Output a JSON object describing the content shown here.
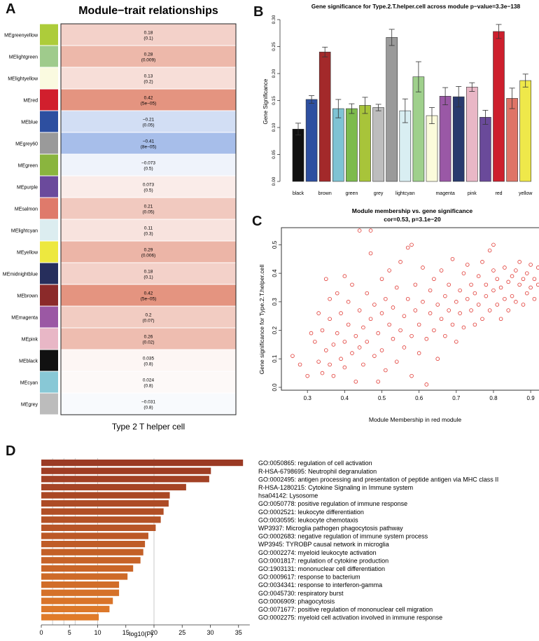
{
  "panel_labels": {
    "a": "A",
    "b": "B",
    "c": "C",
    "d": "D"
  },
  "chart_data": [
    {
      "id": "A",
      "type": "heatmap",
      "title": "Module−trait relationships",
      "xlabel": "Type 2 T helper cell",
      "color_scale": {
        "negative": "#3b6fd0",
        "zero": "#ffffff",
        "positive": "#d9694d",
        "range": [
          -1,
          1
        ]
      },
      "rows": [
        {
          "module": "MEgreenyellow",
          "color": "#adcc3a",
          "cor": 0.18,
          "label": "0.18",
          "pvalue": "(0.1)"
        },
        {
          "module": "MElightgreen",
          "color": "#9fcb8c",
          "cor": 0.28,
          "label": "0.28",
          "pvalue": "(0.009)"
        },
        {
          "module": "MElightyellow",
          "color": "#fafae0",
          "cor": 0.13,
          "label": "0.13",
          "pvalue": "(0.2)"
        },
        {
          "module": "MEred",
          "color": "#d11f2d",
          "cor": 0.42,
          "label": "0.42",
          "pvalue": "(5e−05)"
        },
        {
          "module": "MEblue",
          "color": "#2d4fa0",
          "cor": -0.21,
          "label": "−0.21",
          "pvalue": "(0.05)"
        },
        {
          "module": "MEgrey60",
          "color": "#9a9a9a",
          "cor": -0.41,
          "label": "−0.41",
          "pvalue": "(8e−05)"
        },
        {
          "module": "MEgreen",
          "color": "#8ab53e",
          "cor": -0.073,
          "label": "−0.073",
          "pvalue": "(0.5)"
        },
        {
          "module": "MEpurple",
          "color": "#6b4a9c",
          "cor": 0.073,
          "label": "0.073",
          "pvalue": "(0.5)"
        },
        {
          "module": "MEsalmon",
          "color": "#df7a6b",
          "cor": 0.21,
          "label": "0.21",
          "pvalue": "(0.05)"
        },
        {
          "module": "MElightcyan",
          "color": "#dcedf0",
          "cor": 0.11,
          "label": "0.11",
          "pvalue": "(0.3)"
        },
        {
          "module": "MEyellow",
          "color": "#ede83f",
          "cor": 0.29,
          "label": "0.29",
          "pvalue": "(0.006)"
        },
        {
          "module": "MEmidnightblue",
          "color": "#262e5c",
          "cor": 0.18,
          "label": "0.18",
          "pvalue": "(0.1)"
        },
        {
          "module": "MEbrown",
          "color": "#8b2a2a",
          "cor": 0.42,
          "label": "0.42",
          "pvalue": "(5e−05)"
        },
        {
          "module": "MEmagenta",
          "color": "#9b58a4",
          "cor": 0.2,
          "label": "0.2",
          "pvalue": "(0.07)"
        },
        {
          "module": "MEpink",
          "color": "#e8b7c6",
          "cor": 0.26,
          "label": "0.26",
          "pvalue": "(0.02)"
        },
        {
          "module": "MEblack",
          "color": "#111111",
          "cor": 0.035,
          "label": "0.035",
          "pvalue": "(0.8)"
        },
        {
          "module": "MEcyan",
          "color": "#88c8d6",
          "cor": 0.024,
          "label": "0.024",
          "pvalue": "(0.8)"
        },
        {
          "module": "MEgrey",
          "color": "#bcbcbc",
          "cor": -0.031,
          "label": "−0.031",
          "pvalue": "(0.8)"
        }
      ]
    },
    {
      "id": "B",
      "type": "bar",
      "title": "Gene significance for Type.2.T.helper.cell across module p−value=3.3e−138",
      "xlabel": "",
      "ylabel": "Gene Significance",
      "ylim": [
        0,
        0.3
      ],
      "yticks": [
        "0.00",
        "0.05",
        "0.10",
        "0.15",
        "0.20",
        "0.25",
        "0.30"
      ],
      "categories": [
        "black",
        "blue",
        "brown",
        "cyan",
        "green",
        "greenyellow",
        "grey",
        "grey60",
        "lightcyan",
        "lightgreen",
        "lightyellow",
        "magenta",
        "midnightblue",
        "pink",
        "purple",
        "red",
        "salmon",
        "yellow"
      ],
      "shown_tick_labels": [
        "black",
        "brown",
        "green",
        "grey",
        "lightcyan",
        "magenta",
        "pink",
        "red",
        "yellow"
      ],
      "colors": [
        "#111111",
        "#2d4fa0",
        "#a3292a",
        "#7ec3d3",
        "#7dbb4c",
        "#a8c43a",
        "#bdbdbd",
        "#9a9a9a",
        "#d9eef2",
        "#9fd08c",
        "#fbfbdb",
        "#9a58a6",
        "#283a6e",
        "#e9b7c6",
        "#6a4a9a",
        "#cd1f2d",
        "#df7467",
        "#efe84a"
      ],
      "values": [
        0.097,
        0.152,
        0.24,
        0.135,
        0.135,
        0.141,
        0.137,
        0.267,
        0.131,
        0.194,
        0.122,
        0.158,
        0.157,
        0.175,
        0.119,
        0.278,
        0.154,
        0.187
      ],
      "errors": [
        0.011,
        0.007,
        0.009,
        0.017,
        0.009,
        0.015,
        0.006,
        0.015,
        0.022,
        0.028,
        0.015,
        0.016,
        0.019,
        0.008,
        0.013,
        0.013,
        0.019,
        0.012
      ]
    },
    {
      "id": "C",
      "type": "scatter",
      "title": "Module membership vs. gene significance",
      "subtitle": "cor=0.53, p=3.1e−20",
      "xlabel": "Module Membership in red module",
      "ylabel": "Gene significance for Type.2.T.helper.cell",
      "xlim": [
        0.23,
        0.96
      ],
      "ylim": [
        -0.01,
        0.56
      ],
      "xticks": [
        "0.3",
        "0.4",
        "0.5",
        "0.6",
        "0.7",
        "0.8",
        "0.9"
      ],
      "yticks": [
        "0.0",
        "0.1",
        "0.2",
        "0.3",
        "0.4",
        "0.5"
      ],
      "point_color": "#e0352f",
      "points": [
        [
          0.26,
          0.11
        ],
        [
          0.28,
          0.08
        ],
        [
          0.3,
          0.04
        ],
        [
          0.31,
          0.19
        ],
        [
          0.32,
          0.16
        ],
        [
          0.33,
          0.09
        ],
        [
          0.33,
          0.26
        ],
        [
          0.34,
          0.05
        ],
        [
          0.34,
          0.2
        ],
        [
          0.35,
          0.38
        ],
        [
          0.35,
          0.13
        ],
        [
          0.36,
          0.08
        ],
        [
          0.36,
          0.24
        ],
        [
          0.36,
          0.31
        ],
        [
          0.37,
          0.15
        ],
        [
          0.37,
          0.04
        ],
        [
          0.38,
          0.19
        ],
        [
          0.38,
          0.33
        ],
        [
          0.39,
          0.26
        ],
        [
          0.39,
          0.1
        ],
        [
          0.4,
          0.39
        ],
        [
          0.4,
          0.07
        ],
        [
          0.4,
          0.16
        ],
        [
          0.41,
          0.22
        ],
        [
          0.41,
          0.3
        ],
        [
          0.42,
          0.12
        ],
        [
          0.42,
          0.36
        ],
        [
          0.43,
          0.18
        ],
        [
          0.43,
          0.02
        ],
        [
          0.44,
          0.27
        ],
        [
          0.44,
          0.14
        ],
        [
          0.44,
          0.55
        ],
        [
          0.45,
          0.08
        ],
        [
          0.45,
          0.21
        ],
        [
          0.46,
          0.33
        ],
        [
          0.46,
          0.16
        ],
        [
          0.47,
          0.55
        ],
        [
          0.47,
          0.47
        ],
        [
          0.47,
          0.24
        ],
        [
          0.48,
          0.11
        ],
        [
          0.48,
          0.29
        ],
        [
          0.49,
          0.02
        ],
        [
          0.49,
          0.19
        ],
        [
          0.5,
          0.38
        ],
        [
          0.5,
          0.26
        ],
        [
          0.5,
          0.13
        ],
        [
          0.51,
          0.31
        ],
        [
          0.51,
          0.06
        ],
        [
          0.52,
          0.22
        ],
        [
          0.52,
          0.41
        ],
        [
          0.53,
          0.17
        ],
        [
          0.53,
          0.28
        ],
        [
          0.54,
          0.09
        ],
        [
          0.54,
          0.35
        ],
        [
          0.55,
          0.2
        ],
        [
          0.55,
          0.44
        ],
        [
          0.56,
          0.25
        ],
        [
          0.56,
          0.14
        ],
        [
          0.57,
          0.49
        ],
        [
          0.57,
          0.31
        ],
        [
          0.58,
          0.5
        ],
        [
          0.58,
          0.18
        ],
        [
          0.58,
          0.04
        ],
        [
          0.59,
          0.27
        ],
        [
          0.59,
          0.36
        ],
        [
          0.6,
          0.12
        ],
        [
          0.6,
          0.22
        ],
        [
          0.61,
          0.42
        ],
        [
          0.61,
          0.3
        ],
        [
          0.62,
          0.17
        ],
        [
          0.62,
          0.01
        ],
        [
          0.63,
          0.26
        ],
        [
          0.63,
          0.34
        ],
        [
          0.64,
          0.2
        ],
        [
          0.64,
          0.38
        ],
        [
          0.65,
          0.1
        ],
        [
          0.65,
          0.29
        ],
        [
          0.66,
          0.24
        ],
        [
          0.66,
          0.41
        ],
        [
          0.67,
          0.32
        ],
        [
          0.67,
          0.18
        ],
        [
          0.68,
          0.27
        ],
        [
          0.68,
          0.36
        ],
        [
          0.69,
          0.22
        ],
        [
          0.69,
          0.45
        ],
        [
          0.7,
          0.3
        ],
        [
          0.7,
          0.16
        ],
        [
          0.71,
          0.34
        ],
        [
          0.71,
          0.26
        ],
        [
          0.72,
          0.4
        ],
        [
          0.72,
          0.21
        ],
        [
          0.73,
          0.31
        ],
        [
          0.73,
          0.43
        ],
        [
          0.74,
          0.27
        ],
        [
          0.74,
          0.36
        ],
        [
          0.75,
          0.22
        ],
        [
          0.75,
          0.33
        ],
        [
          0.76,
          0.39
        ],
        [
          0.76,
          0.29
        ],
        [
          0.77,
          0.24
        ],
        [
          0.77,
          0.44
        ],
        [
          0.78,
          0.32
        ],
        [
          0.78,
          0.36
        ],
        [
          0.79,
          0.27
        ],
        [
          0.79,
          0.48
        ],
        [
          0.8,
          0.41
        ],
        [
          0.8,
          0.34
        ],
        [
          0.8,
          0.5
        ],
        [
          0.81,
          0.29
        ],
        [
          0.81,
          0.38
        ],
        [
          0.82,
          0.24
        ],
        [
          0.82,
          0.35
        ],
        [
          0.83,
          0.42
        ],
        [
          0.83,
          0.31
        ],
        [
          0.84,
          0.37
        ],
        [
          0.84,
          0.27
        ],
        [
          0.85,
          0.39
        ],
        [
          0.85,
          0.32
        ],
        [
          0.86,
          0.3
        ],
        [
          0.86,
          0.41
        ],
        [
          0.87,
          0.36
        ],
        [
          0.87,
          0.44
        ],
        [
          0.88,
          0.29
        ],
        [
          0.88,
          0.38
        ],
        [
          0.89,
          0.33
        ],
        [
          0.89,
          0.4
        ],
        [
          0.9,
          0.35
        ],
        [
          0.9,
          0.43
        ],
        [
          0.91,
          0.31
        ],
        [
          0.91,
          0.38
        ],
        [
          0.92,
          0.42
        ],
        [
          0.92,
          0.36
        ],
        [
          0.93,
          0.39
        ],
        [
          0.94,
          0.34
        ],
        [
          0.95,
          0.37
        ]
      ]
    },
    {
      "id": "D",
      "type": "bar",
      "orientation": "horizontal",
      "title": "",
      "xlabel": "-log10(P)",
      "ylabel": "",
      "xlim": [
        0,
        37
      ],
      "xticks": [
        "0",
        "5",
        "10",
        "15",
        "20",
        "25",
        "30",
        "35"
      ],
      "gridlines": [
        2,
        4,
        6,
        10,
        20
      ],
      "categories": [
        "GO:0050865: regulation of cell activation",
        "R-HSA-6798695: Neutrophil degranulation",
        "GO:0002495: antigen processing and presentation of peptide antigen via MHC class II",
        "R-HSA-1280215: Cytokine Signaling in Immune system",
        "hsa04142: Lysosome",
        "GO:0050778: positive regulation of immune response",
        "GO:0002521: leukocyte differentiation",
        "GO:0030595: leukocyte chemotaxis",
        "WP3937: Microglia pathogen phagocytosis pathway",
        "GO:0002683: negative regulation of immune system process",
        "WP3945: TYROBP causal network in microglia",
        "GO:0002274: myeloid leukocyte activation",
        "GO:0001817: regulation of cytokine production",
        "GO:1903131: mononuclear cell differentiation",
        "GO:0009617: response to bacterium",
        "GO:0034341: response to interferon-gamma",
        "GO:0045730: respiratory burst",
        "GO:0006909: phagocytosis",
        "GO:0071677: positive regulation of mononuclear cell migration",
        "GO:0002275: myeloid cell activation involved in immune response"
      ],
      "values": [
        35.8,
        30.1,
        29.8,
        25.7,
        22.8,
        22.6,
        21.7,
        21.2,
        20.3,
        19.0,
        18.4,
        18.1,
        17.6,
        16.3,
        15.3,
        13.8,
        13.8,
        12.7,
        12.1,
        10.2
      ]
    }
  ]
}
